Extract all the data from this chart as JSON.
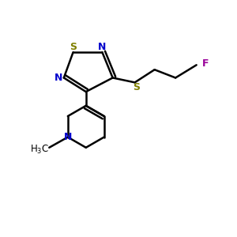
{
  "background_color": "#ffffff",
  "bond_color": "#000000",
  "S_color": "#808000",
  "N_color": "#0000cc",
  "F_color": "#990099",
  "line_width": 1.8,
  "figsize": [
    3.0,
    3.0
  ],
  "dpi": 100,
  "xlim": [
    0,
    10
  ],
  "ylim": [
    0,
    10
  ]
}
